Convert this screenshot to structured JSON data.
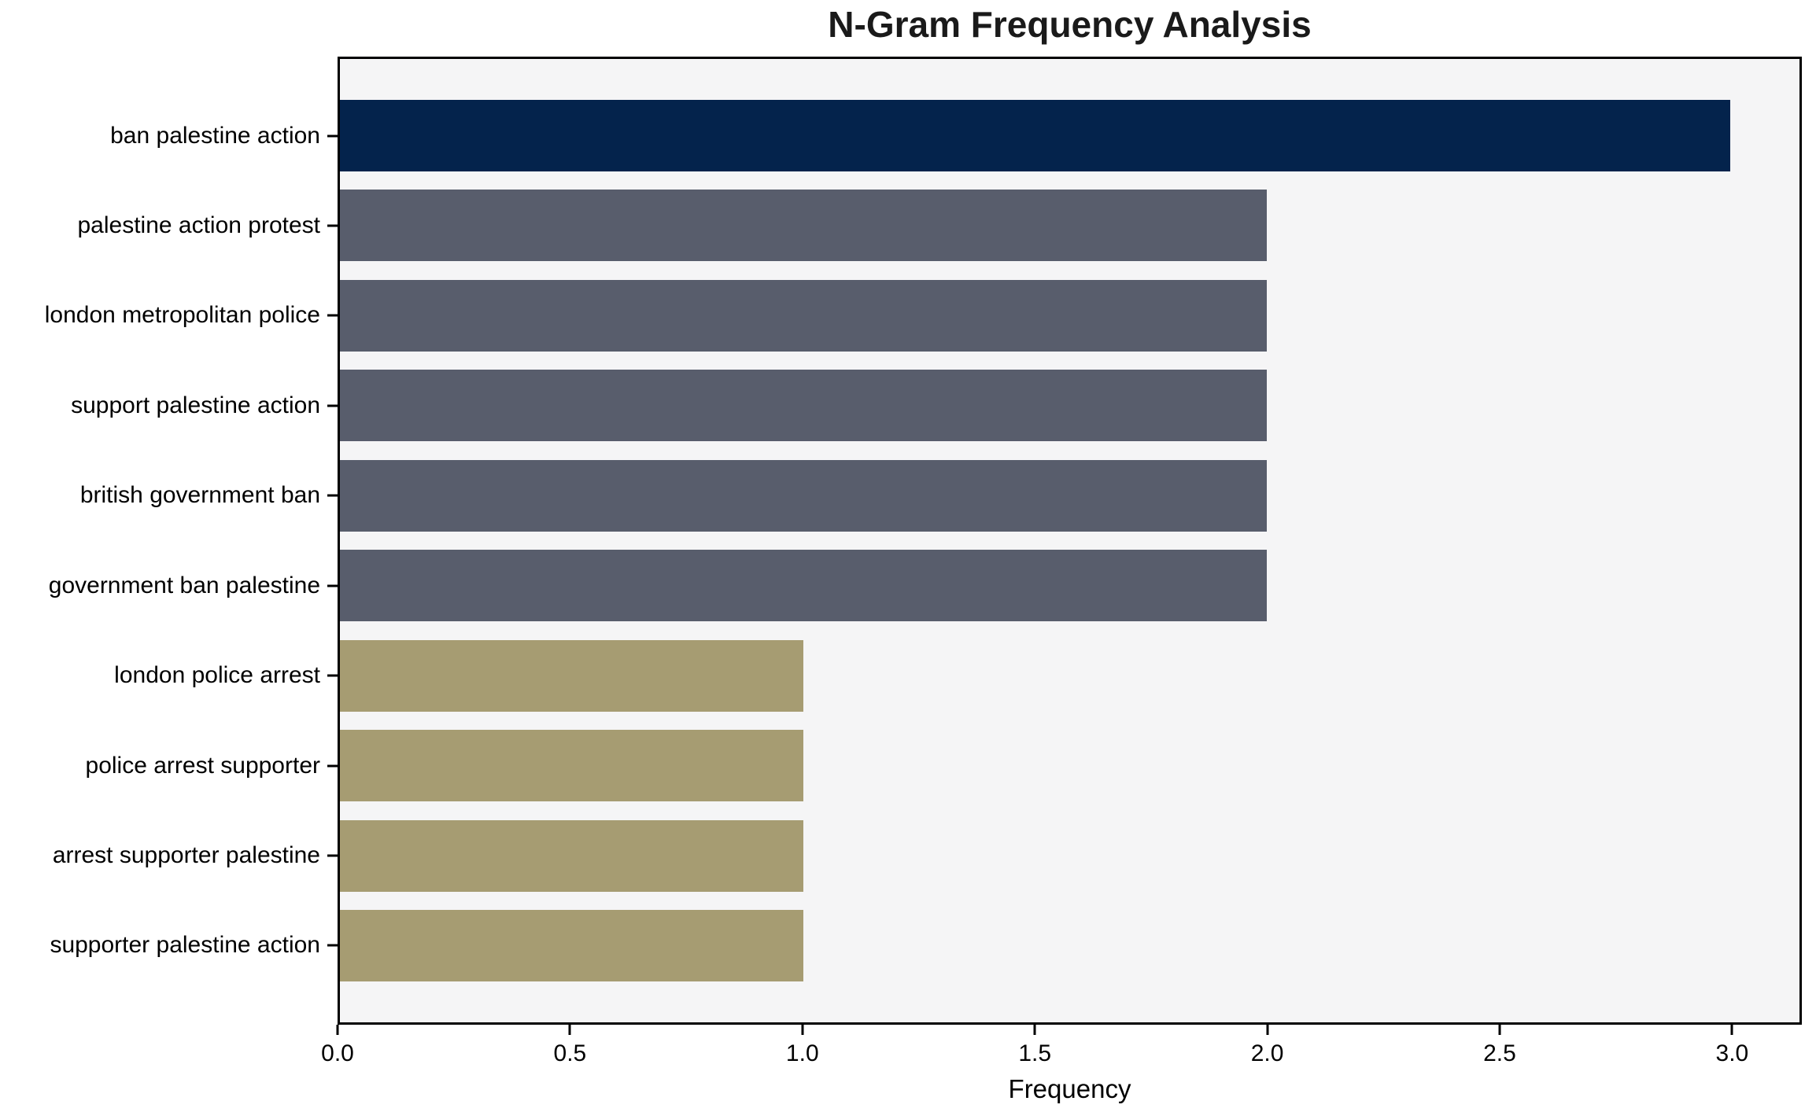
{
  "chart_data": {
    "type": "bar",
    "orientation": "horizontal",
    "title": "N-Gram Frequency Analysis",
    "xlabel": "Frequency",
    "categories": [
      "ban palestine action",
      "palestine action protest",
      "london metropolitan police",
      "support palestine action",
      "british government ban",
      "government ban palestine",
      "london police arrest",
      "police arrest supporter",
      "arrest supporter palestine",
      "supporter palestine action"
    ],
    "values": [
      3,
      2,
      2,
      2,
      2,
      2,
      1,
      1,
      1,
      1
    ],
    "bar_colors": [
      "#04234c",
      "#585d6c",
      "#585d6c",
      "#585d6c",
      "#585d6c",
      "#585d6c",
      "#a69c72",
      "#a69c72",
      "#a69c72",
      "#a69c72"
    ],
    "palette": {
      "navy": "#04234c",
      "slate": "#585d6c",
      "khaki": "#a69c72"
    },
    "xlim": [
      0,
      3.15
    ],
    "xticks": [
      "0.0",
      "0.5",
      "1.0",
      "1.5",
      "2.0",
      "2.5",
      "3.0"
    ],
    "plot_background": "#f5f5f6",
    "axis_color": "#000000",
    "grid": "off",
    "legend": "none"
  }
}
